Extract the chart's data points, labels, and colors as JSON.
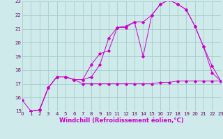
{
  "xlabel": "Windchill (Refroidissement éolien,°C)",
  "bg_color": "#ceeaea",
  "grid_color": "#aacccc",
  "line_color": "#cc00cc",
  "xlabel_color": "#cc00cc",
  "tick_color": "#660066",
  "xmin": 0,
  "xmax": 23,
  "ymin": 15,
  "ymax": 23,
  "line1_x": [
    0,
    1,
    2,
    3,
    4,
    5,
    6,
    7,
    8,
    9,
    10,
    11,
    12,
    13,
    14,
    15,
    16,
    17,
    18,
    19,
    20,
    21,
    22,
    23
  ],
  "line1_y": [
    15.8,
    15.0,
    15.1,
    16.7,
    17.5,
    17.5,
    17.3,
    17.0,
    17.0,
    17.0,
    17.0,
    17.0,
    17.0,
    17.0,
    17.0,
    17.0,
    17.1,
    17.1,
    17.2,
    17.2,
    17.2,
    17.2,
    17.2,
    17.2
  ],
  "line2_x": [
    1,
    2,
    3,
    4,
    5,
    6,
    7,
    8,
    9,
    10,
    11,
    12,
    13,
    14,
    15,
    16,
    17,
    18,
    19,
    20,
    21,
    22,
    23
  ],
  "line2_y": [
    15.0,
    15.1,
    16.7,
    17.5,
    17.5,
    17.3,
    17.3,
    17.5,
    18.4,
    20.3,
    21.1,
    21.2,
    21.5,
    21.5,
    22.0,
    22.8,
    23.1,
    22.8,
    22.4,
    21.2,
    19.7,
    18.3,
    17.2
  ],
  "line3_x": [
    1,
    2,
    3,
    4,
    5,
    6,
    7,
    8,
    9,
    10,
    11,
    12,
    13,
    14,
    15,
    16,
    17,
    18,
    19,
    20,
    21,
    22,
    23
  ],
  "line3_y": [
    15.0,
    15.1,
    16.7,
    17.5,
    17.5,
    17.3,
    17.3,
    18.4,
    19.2,
    19.4,
    21.1,
    21.1,
    21.5,
    19.0,
    22.0,
    22.8,
    23.1,
    22.8,
    22.4,
    21.2,
    19.7,
    17.8,
    17.2
  ],
  "xticks": [
    0,
    1,
    2,
    3,
    4,
    5,
    6,
    7,
    8,
    9,
    10,
    11,
    12,
    13,
    14,
    15,
    16,
    17,
    18,
    19,
    20,
    21,
    22,
    23
  ],
  "yticks": [
    15,
    16,
    17,
    18,
    19,
    20,
    21,
    22,
    23
  ],
  "tick_fontsize": 5.0,
  "label_fontsize": 6.0
}
